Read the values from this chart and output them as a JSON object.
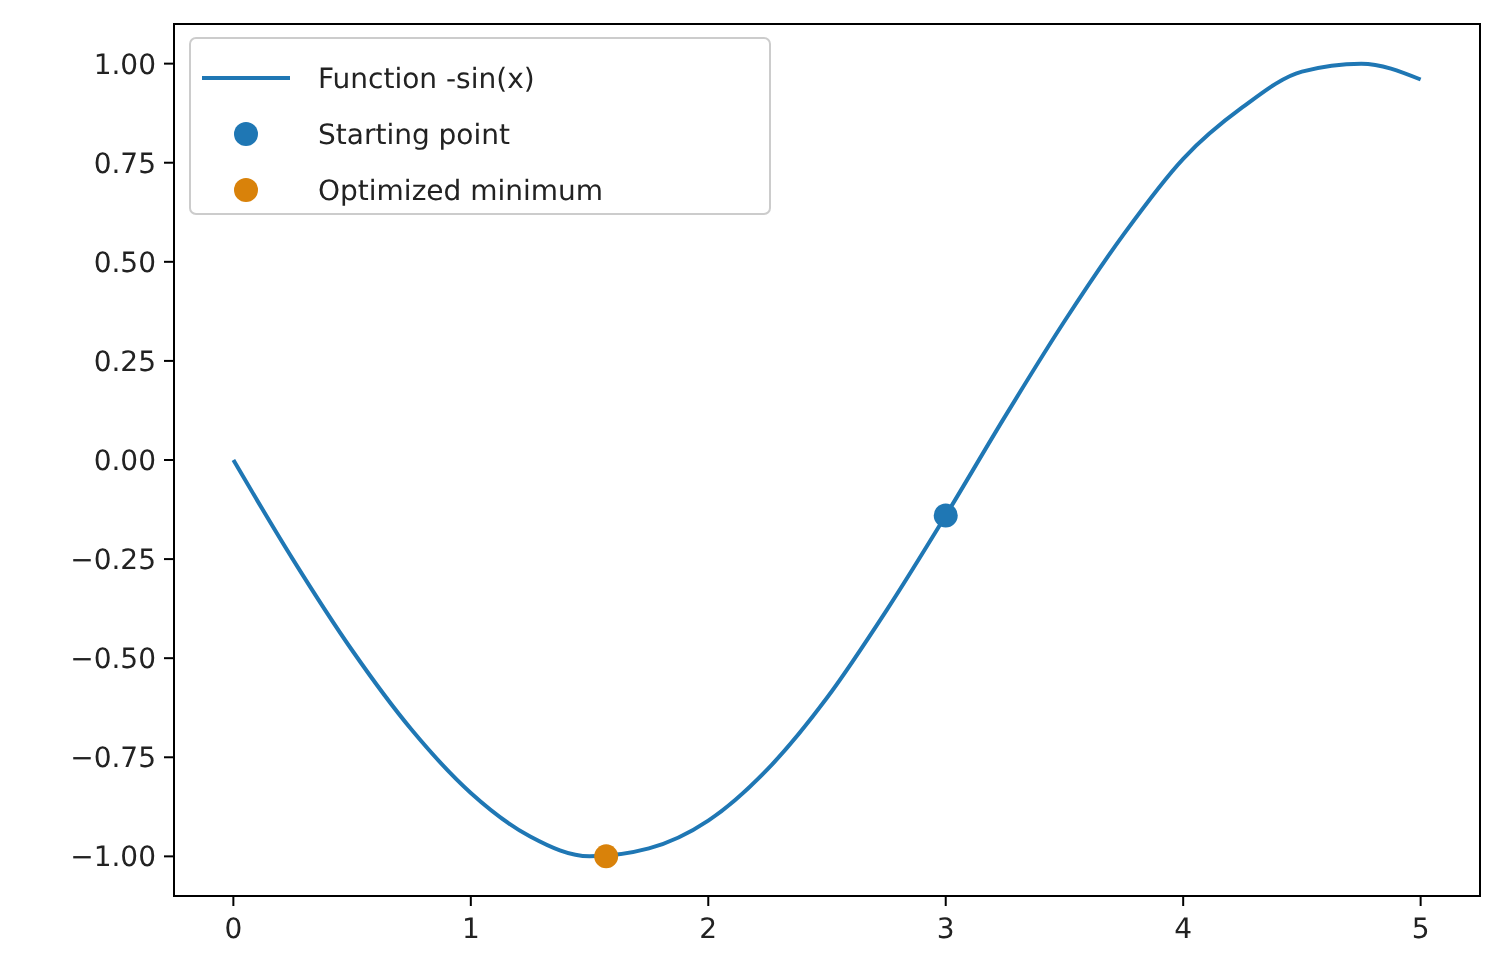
{
  "chart_data": {
    "type": "line",
    "legend": "top left",
    "line_style": "solid",
    "grid": false,
    "xlim": [
      -0.25,
      5.25
    ],
    "xticks": [
      0,
      1,
      2,
      3,
      4,
      5
    ],
    "ylim": [
      -1.1,
      1.1
    ],
    "yticks": [
      {
        "value": -1,
        "label": "−1.00"
      },
      {
        "value": -0.75,
        "label": "−0.75"
      },
      {
        "value": -0.5,
        "label": "−0.50"
      },
      {
        "value": -0.25,
        "label": "−0.25"
      },
      {
        "value": 0,
        "label": "0.00"
      },
      {
        "value": 0.25,
        "label": "0.25"
      },
      {
        "value": 0.5,
        "label": "0.50"
      },
      {
        "value": 0.75,
        "label": "0.75"
      },
      {
        "value": 1,
        "label": "1.00"
      }
    ],
    "series": [
      {
        "name": "Function -sin(x)",
        "color": "#1f77b4",
        "marker": "none",
        "x": [
          0,
          0.25,
          0.5,
          0.75,
          1,
          1.25,
          1.5,
          1.75,
          2,
          2.25,
          2.5,
          2.75,
          3,
          3.25,
          3.5,
          3.75,
          4,
          4.25,
          4.5,
          4.75,
          5
        ],
        "values": [
          0,
          -0.25,
          -0.48,
          -0.68,
          -0.84,
          -0.95,
          -1.0,
          -0.98,
          -0.91,
          -0.78,
          -0.6,
          -0.38,
          -0.14,
          0.11,
          0.35,
          0.57,
          0.76,
          0.89,
          0.98,
          1.0,
          0.96
        ]
      },
      {
        "name": "Starting point",
        "color": "#1f77b4",
        "type": "scatter",
        "marker": "circle",
        "x": [
          3
        ],
        "values": [
          -0.14
        ]
      },
      {
        "name": "Optimized minimum",
        "color": "#d9820a",
        "type": "scatter",
        "marker": "circle",
        "x": [
          1.57
        ],
        "values": [
          -1.0
        ]
      }
    ]
  }
}
